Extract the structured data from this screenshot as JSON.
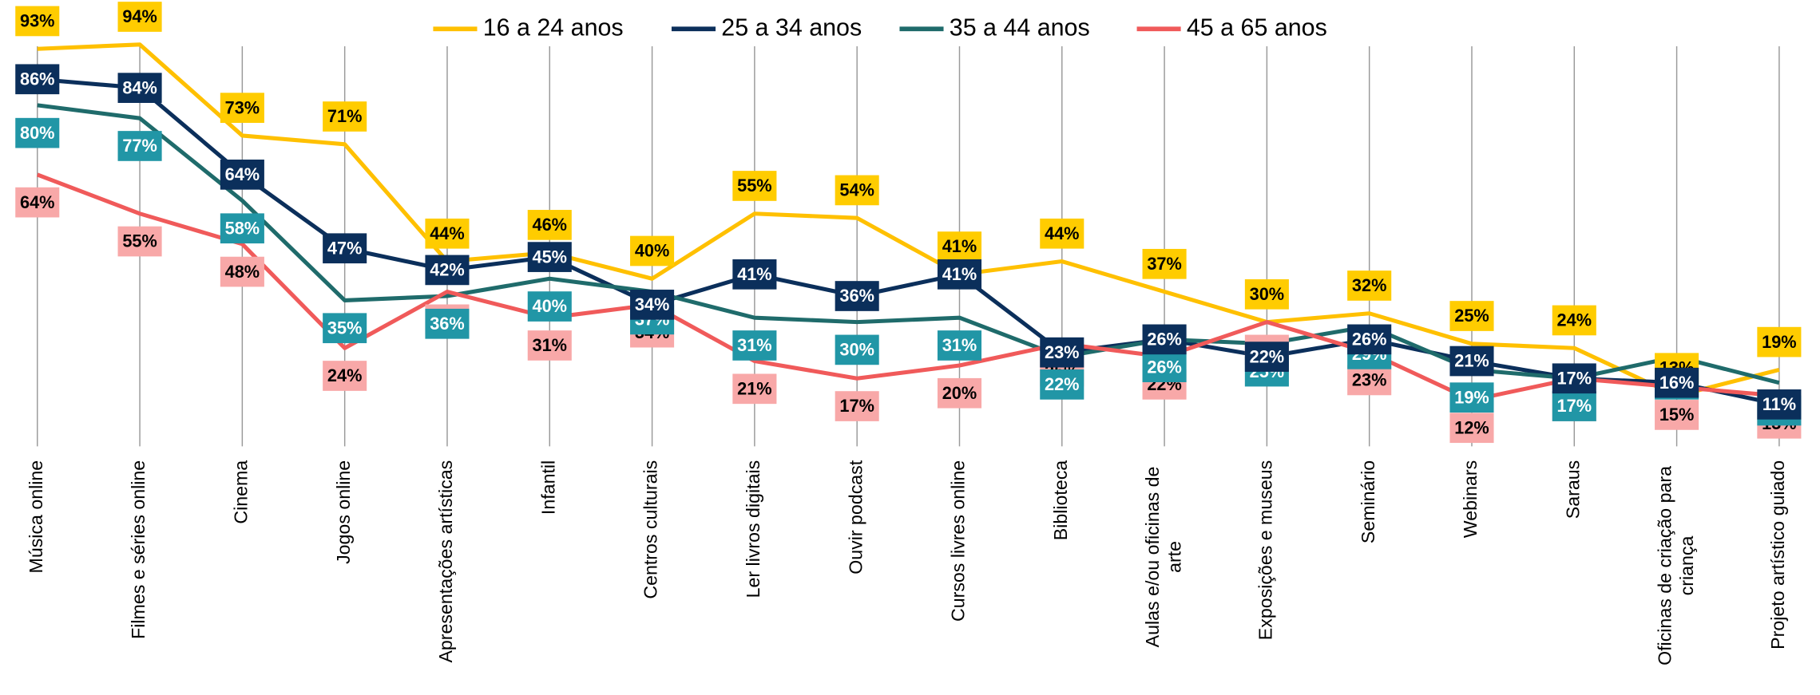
{
  "chart_data": {
    "type": "line",
    "categories": [
      "Música online",
      "Filmes e séries online",
      "Cinema",
      "Jogos online",
      "Apresentações artísticas",
      "Infantil",
      "Centros culturais",
      "Ler livros digitais",
      "Ouvir podcast",
      "Cursos livres online",
      "Biblioteca",
      "Aulas e/ou oficinas de arte",
      "Exposições e museus",
      "Seminário",
      "Webinars",
      "Saraus",
      "Oficinas de criação para criança",
      "Projeto artístico guiado"
    ],
    "ylim": [
      0,
      100
    ],
    "legend": "top",
    "series": [
      {
        "name": "16 a 24 anos",
        "color": "#FFC000",
        "label_color": "#FFCC00",
        "text_color": "#000000",
        "values": [
          93,
          94,
          73,
          71,
          44,
          46,
          40,
          55,
          54,
          41,
          44,
          37,
          30,
          32,
          25,
          24,
          13,
          19
        ],
        "value_labels": [
          "93%",
          "94%",
          "73%",
          "71%",
          "44%",
          "46%",
          "40%",
          "55%",
          "54%",
          "41%",
          "44%",
          "37%",
          "30%",
          "32%",
          "25%",
          "24%",
          "13%",
          "19%"
        ]
      },
      {
        "name": "25 a 34 anos",
        "color": "#0B2F5B",
        "label_color": "#0B2F5B",
        "text_color": "#FFFFFF",
        "values": [
          86,
          84,
          64,
          47,
          42,
          45,
          34,
          41,
          36,
          41,
          23,
          26,
          22,
          26,
          21,
          17,
          16,
          11
        ],
        "value_labels": [
          "86%",
          "84%",
          "64%",
          "47%",
          "42%",
          "45%",
          "34%",
          "41%",
          "36%",
          "41%",
          "23%",
          "26%",
          "22%",
          "26%",
          "21%",
          "17%",
          "16%",
          "11%"
        ]
      },
      {
        "name": "35 a 44 anos",
        "color": "#1F6B6B",
        "label_color": "#2196A6",
        "text_color": "#FFFFFF",
        "values": [
          80,
          77,
          58,
          35,
          36,
          40,
          37,
          31,
          30,
          31,
          22,
          26,
          25,
          29,
          19,
          17,
          22,
          16
        ],
        "value_labels": [
          "80%",
          "77%",
          "58%",
          "35%",
          "36%",
          "40%",
          "37%",
          "31%",
          "30%",
          "31%",
          "22%",
          "26%",
          "25%",
          "29%",
          "19%",
          "17%",
          "22%",
          "16%"
        ]
      },
      {
        "name": "45 a 65 anos",
        "color": "#F05A5A",
        "label_color": "#F8A8A8",
        "text_color": "#000000",
        "values": [
          64,
          55,
          48,
          24,
          37,
          31,
          34,
          21,
          17,
          20,
          25,
          22,
          30,
          23,
          12,
          17,
          15,
          13
        ],
        "value_labels": [
          "64%",
          "55%",
          "48%",
          "24%",
          "37%",
          "31%",
          "34%",
          "21%",
          "17%",
          "20%",
          "25%",
          "22%",
          "30%",
          "23%",
          "12%",
          "17%",
          "15%",
          "13%"
        ]
      }
    ]
  }
}
